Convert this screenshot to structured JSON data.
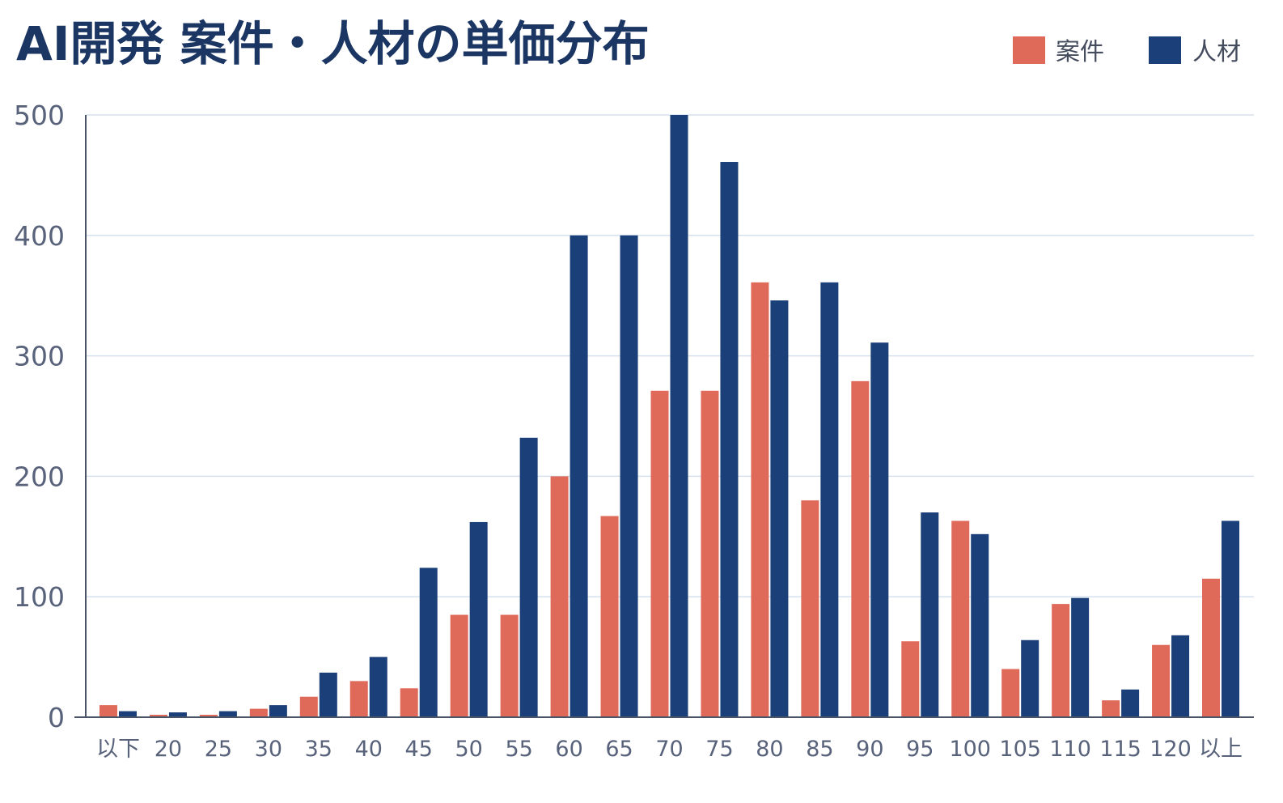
{
  "chart_data": {
    "type": "bar",
    "title": "AI開発 案件・人材の単価分布",
    "xlabel": "",
    "ylabel": "",
    "ylim": [
      0,
      500
    ],
    "yticks": [
      0,
      100,
      200,
      300,
      400,
      500
    ],
    "grid": true,
    "legend_position": "top-right",
    "categories": [
      "以下",
      "20",
      "25",
      "30",
      "35",
      "40",
      "45",
      "50",
      "55",
      "60",
      "65",
      "70",
      "75",
      "80",
      "85",
      "90",
      "95",
      "100",
      "105",
      "110",
      "115",
      "120",
      "以上"
    ],
    "series": [
      {
        "name": "案件",
        "color": "#e06a5a",
        "values": [
          10,
          2,
          2,
          7,
          17,
          30,
          24,
          85,
          85,
          200,
          167,
          271,
          271,
          361,
          180,
          279,
          63,
          163,
          40,
          94,
          14,
          60,
          115
        ]
      },
      {
        "name": "人材",
        "color": "#1b3f78",
        "values": [
          5,
          4,
          5,
          10,
          37,
          50,
          124,
          162,
          232,
          400,
          400,
          500,
          461,
          346,
          361,
          311,
          170,
          152,
          64,
          99,
          23,
          68,
          163
        ]
      }
    ]
  }
}
